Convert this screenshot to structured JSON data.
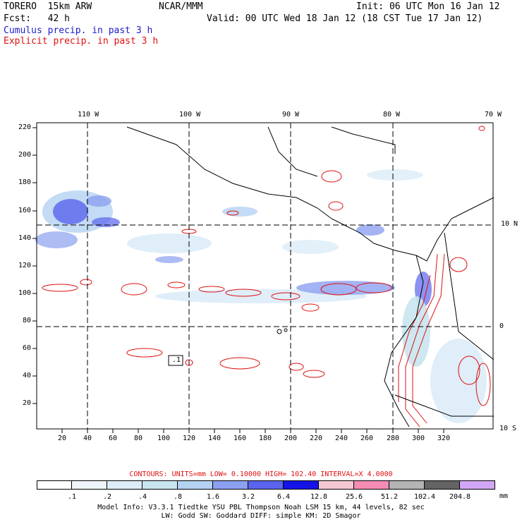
{
  "header": {
    "model": "TORERO  15km ARW",
    "center": "NCAR/MMM",
    "init": "Init: 06 UTC Mon 16 Jan 12",
    "fcst": "Fcst:   42 h",
    "valid": "Valid: 00 UTC Wed 18 Jan 12 (18 CST Tue 17 Jan 12)",
    "field1": "Cumulus precip. in past 3 h",
    "field2": "Explicit precip. in past 3 h"
  },
  "axes": {
    "top_lon_labels": [
      "110 W",
      "100 W",
      "90 W",
      "80 W",
      "70 W"
    ],
    "right_lat_labels": [
      "10 N",
      "0",
      "10 S"
    ],
    "left_grid_labels": [
      "220",
      "200",
      "180",
      "160",
      "140",
      "120",
      "100",
      "80",
      "60",
      "40",
      "20"
    ],
    "bottom_grid_labels": [
      "20",
      "40",
      "60",
      "80",
      "100",
      "120",
      "140",
      "160",
      "180",
      "200",
      "220",
      "240",
      "260",
      "280",
      "300",
      "320"
    ]
  },
  "contours_line": "CONTOURS:  UNITS=mm  LOW= 0.10000      HIGH=  102.40      INTERVAL=X  4.0000",
  "colorbar": {
    "labels": [
      ".1",
      ".2",
      ".4",
      ".8",
      "1.6",
      "3.2",
      "6.4",
      "12.8",
      "25.6",
      "51.2",
      "102.4",
      "204.8"
    ],
    "unit": "mm",
    "colors": [
      "#ffffff",
      "#eef6fb",
      "#dcecf8",
      "#c8e6f0",
      "#b4d2f2",
      "#8ca0f0",
      "#5a64ec",
      "#1414e6",
      "#f4c8d2",
      "#f48cb4",
      "#b4b4b4",
      "#646464",
      "#d2a6f6"
    ]
  },
  "footer": {
    "line1": "Model Info: V3.3.1    Tiedtke YSU PBL   Thompson     Noah LSM  15 km,   44 levels,   82 sec",
    "line2": "LW: Godd SW: Goddard DIFF: simple KM: 2D Smagor"
  },
  "map_annotation": ".1"
}
